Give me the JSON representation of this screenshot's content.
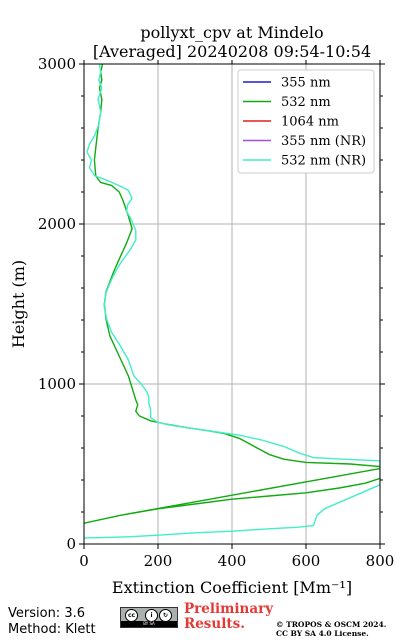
{
  "chart_data": {
    "type": "line",
    "title": "pollyxt_cpv at Mindelo",
    "subtitle": "[Averaged] 20240208 09:54-10:54",
    "xlabel": "Extinction Coefficient [Mm⁻¹]",
    "ylabel": "Height (m)",
    "xlim": [
      0,
      800
    ],
    "ylim": [
      0,
      3000
    ],
    "x_ticks": [
      0,
      200,
      400,
      600,
      800
    ],
    "y_ticks": [
      0,
      1000,
      2000,
      3000
    ],
    "grid": true,
    "legend_position": "top-right",
    "series": [
      {
        "name": "355 nm",
        "color": "#1f1fcc",
        "points": []
      },
      {
        "name": "532 nm",
        "color": "#10aa10",
        "points": [
          [
            800,
            410
          ],
          [
            760,
            380
          ],
          [
            690,
            350
          ],
          [
            600,
            320
          ],
          [
            500,
            300
          ],
          [
            400,
            280
          ],
          [
            300,
            250
          ],
          [
            200,
            220
          ],
          [
            100,
            180
          ],
          [
            0,
            130
          ],
          [
            0,
            130
          ],
          [
            100,
            180
          ],
          [
            820,
            480
          ],
          [
            720,
            500
          ],
          [
            600,
            510
          ],
          [
            540,
            530
          ],
          [
            500,
            560
          ],
          [
            460,
            610
          ],
          [
            420,
            660
          ],
          [
            380,
            690
          ],
          [
            330,
            710
          ],
          [
            270,
            730
          ],
          [
            220,
            750
          ],
          [
            180,
            770
          ],
          [
            150,
            800
          ],
          [
            140,
            830
          ],
          [
            145,
            870
          ],
          [
            140,
            900
          ],
          [
            120,
            1050
          ],
          [
            100,
            1150
          ],
          [
            80,
            1250
          ],
          [
            70,
            1300
          ],
          [
            60,
            1400
          ],
          [
            55,
            1500
          ],
          [
            60,
            1580
          ],
          [
            70,
            1640
          ],
          [
            80,
            1700
          ],
          [
            95,
            1780
          ],
          [
            115,
            1880
          ],
          [
            130,
            1970
          ],
          [
            120,
            2050
          ],
          [
            105,
            2150
          ],
          [
            95,
            2200
          ],
          [
            75,
            2240
          ],
          [
            45,
            2260
          ],
          [
            32,
            2300
          ],
          [
            28,
            2400
          ],
          [
            33,
            2500
          ],
          [
            38,
            2600
          ],
          [
            45,
            2700
          ],
          [
            48,
            2780
          ],
          [
            42,
            2850
          ],
          [
            48,
            2900
          ],
          [
            45,
            2950
          ],
          [
            50,
            3000
          ]
        ]
      },
      {
        "name": "1064 nm",
        "color": "#dd2020",
        "points": []
      },
      {
        "name": "355 nm (NR)",
        "color": "#a04fe0",
        "points": []
      },
      {
        "name": "532 nm (NR)",
        "color": "#41eec8",
        "points": [
          [
            0,
            38
          ],
          [
            50,
            40
          ],
          [
            120,
            45
          ],
          [
            200,
            55
          ],
          [
            300,
            70
          ],
          [
            400,
            80
          ],
          [
            500,
            95
          ],
          [
            580,
            105
          ],
          [
            620,
            115
          ],
          [
            625,
            150
          ],
          [
            630,
            180
          ],
          [
            650,
            220
          ],
          [
            700,
            270
          ],
          [
            760,
            330
          ],
          [
            800,
            370
          ],
          [
            800,
            520
          ],
          [
            700,
            530
          ],
          [
            620,
            540
          ],
          [
            580,
            570
          ],
          [
            540,
            610
          ],
          [
            480,
            650
          ],
          [
            420,
            680
          ],
          [
            360,
            700
          ],
          [
            300,
            720
          ],
          [
            240,
            740
          ],
          [
            200,
            760
          ],
          [
            180,
            790
          ],
          [
            180,
            840
          ],
          [
            175,
            880
          ],
          [
            175,
            920
          ],
          [
            170,
            950
          ],
          [
            155,
            1000
          ],
          [
            135,
            1050
          ],
          [
            120,
            1150
          ],
          [
            95,
            1250
          ],
          [
            75,
            1320
          ],
          [
            62,
            1400
          ],
          [
            55,
            1480
          ],
          [
            58,
            1560
          ],
          [
            68,
            1620
          ],
          [
            80,
            1680
          ],
          [
            100,
            1760
          ],
          [
            125,
            1840
          ],
          [
            140,
            1900
          ],
          [
            140,
            1960
          ],
          [
            125,
            2040
          ],
          [
            115,
            2080
          ],
          [
            118,
            2120
          ],
          [
            130,
            2160
          ],
          [
            120,
            2210
          ],
          [
            95,
            2240
          ],
          [
            55,
            2280
          ],
          [
            30,
            2300
          ],
          [
            15,
            2350
          ],
          [
            20,
            2400
          ],
          [
            8,
            2450
          ],
          [
            15,
            2500
          ],
          [
            28,
            2550
          ],
          [
            40,
            2620
          ],
          [
            45,
            2700
          ],
          [
            38,
            2780
          ],
          [
            48,
            2850
          ],
          [
            40,
            2900
          ],
          [
            45,
            2950
          ],
          [
            42,
            3000
          ]
        ]
      }
    ]
  },
  "footer": {
    "version": "Version: 3.6",
    "method": "Method: Klett",
    "cc_badge_text": "BY SA",
    "preliminary_line1": "Preliminary",
    "preliminary_line2": "Results.",
    "license_line1": "© TROPOS & OSCM 2024.",
    "license_line2": "CC BY SA 4.0 License."
  }
}
